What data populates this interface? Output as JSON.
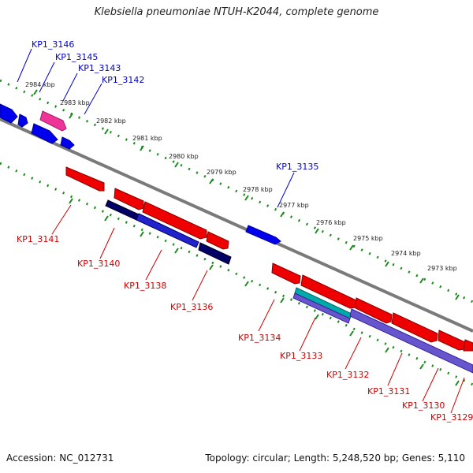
{
  "title": "Klebsiella pneumoniae NTUH-K2044, complete genome",
  "footer": {
    "accession": "Accession: NC_012731",
    "topology": "Topology: circular; Length: 5,248,520 bp; Genes: 5,110"
  },
  "scale": {
    "labels": [
      "2984 kbp",
      "2983 kbp",
      "2982 kbp",
      "2981 kbp",
      "2980 kbp",
      "2979 kbp",
      "2978 kbp",
      "2977 kbp",
      "2976 kbp",
      "2975 kbp",
      "2974 kbp",
      "2973 kbp"
    ]
  },
  "genes_forward": [
    "KP1_3146",
    "KP1_3145",
    "KP1_3143",
    "KP1_3142",
    "KP1_3135"
  ],
  "genes_reverse": [
    "KP1_3141",
    "KP1_3140",
    "KP1_3138",
    "KP1_3136",
    "KP1_3134",
    "KP1_3133",
    "KP1_3132",
    "KP1_3131",
    "KP1_3130",
    "KP1_3129"
  ],
  "colors": {
    "forward_label": "#0000cc",
    "reverse_label": "#cc0000",
    "backbone": "#7a7a7a",
    "tick": "#1a8a1a",
    "forward_gene": "#0000ee",
    "forward_pink": "#ee3399",
    "reverse_gene": "#ee0000",
    "cds_blue": "#2222cc",
    "cds_navy": "#000066",
    "cds_teal": "#00aaaa",
    "cds_purple": "#6655cc"
  }
}
